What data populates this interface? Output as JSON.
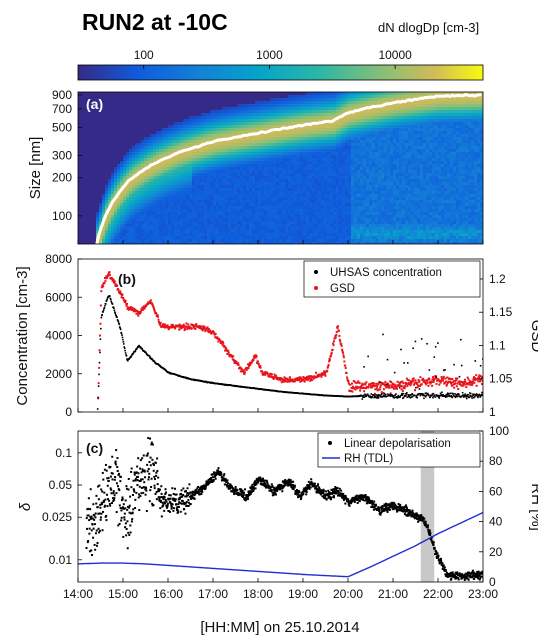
{
  "figure": {
    "title": "RUN2 at -10C",
    "colorbar_label": "dN dlogDp [cm-3]",
    "colorbar_ticks": [
      "100",
      "1000",
      "10000"
    ],
    "xlabel": "[HH:MM] on 25.10.2014",
    "x_ticks": [
      "14:00",
      "15:00",
      "16:00",
      "17:00",
      "18:00",
      "19:00",
      "20:00",
      "21:00",
      "22:00",
      "23:00"
    ]
  },
  "chart_data": [
    {
      "type": "heatmap",
      "panel_tag": "(a)",
      "ylabel": "Size [nm]",
      "y_scale": "log",
      "y_ticks": [
        "100",
        "200",
        "300",
        "500",
        "700",
        "900"
      ],
      "ylim": [
        60,
        950
      ],
      "xlim": [
        "14:00",
        "23:00"
      ],
      "colormap": "parula",
      "color_scale": "log",
      "color_range": [
        30,
        50000
      ],
      "median_line_color": "#ffffff",
      "median_line": {
        "x": [
          "14:25",
          "14:35",
          "14:50",
          "15:10",
          "15:40",
          "16:20",
          "17:00",
          "18:00",
          "19:00",
          "19:40",
          "20:00",
          "21:00",
          "22:00",
          "23:00"
        ],
        "y": [
          60,
          95,
          140,
          195,
          255,
          325,
          385,
          450,
          520,
          560,
          650,
          780,
          880,
          900
        ]
      }
    },
    {
      "type": "scatter",
      "panel_tag": "(b)",
      "ylabel": "Concentration [cm-3]",
      "y2label": "GSD",
      "ylim": [
        0,
        8000
      ],
      "y_ticks": [
        "0",
        "2000",
        "4000",
        "6000",
        "8000"
      ],
      "y2lim": [
        1.0,
        1.23
      ],
      "y2_ticks": [
        "1",
        "1.05",
        "1.1",
        "1.15",
        "1.2"
      ],
      "legend": "top-right",
      "series": [
        {
          "name": "UHSAS concentration",
          "color": "#000000",
          "x": [
            "14:00",
            "14:25",
            "14:30",
            "14:40",
            "14:55",
            "15:05",
            "15:20",
            "15:40",
            "16:00",
            "16:30",
            "17:00",
            "17:30",
            "18:00",
            "18:30",
            "19:00",
            "19:30",
            "20:00",
            "20:30",
            "21:00",
            "21:30",
            "22:00",
            "22:30",
            "23:00"
          ],
          "y": [
            0,
            0,
            5000,
            6200,
            4500,
            2700,
            3500,
            2700,
            2100,
            1750,
            1550,
            1400,
            1250,
            1100,
            1000,
            900,
            850,
            900,
            1800,
            1500,
            1400,
            1600,
            1200
          ]
        },
        {
          "name": "GSD",
          "color": "#e8141b",
          "x": [
            "14:25",
            "14:30",
            "14:40",
            "14:55",
            "15:05",
            "15:20",
            "15:35",
            "15:50",
            "16:10",
            "16:40",
            "17:00",
            "17:20",
            "17:40",
            "17:55",
            "18:05",
            "18:30",
            "19:00",
            "19:30",
            "19:45",
            "20:00",
            "20:30",
            "21:00",
            "21:30",
            "22:00",
            "22:30",
            "23:00"
          ],
          "y": [
            1.0,
            1.19,
            1.21,
            1.18,
            1.16,
            1.15,
            1.17,
            1.13,
            1.13,
            1.13,
            1.12,
            1.09,
            1.06,
            1.085,
            1.06,
            1.05,
            1.05,
            1.06,
            1.13,
            1.04,
            1.04,
            1.04,
            1.045,
            1.05,
            1.045,
            1.05
          ]
        }
      ]
    },
    {
      "type": "scatter",
      "panel_tag": "(c)",
      "ylabel": "δ",
      "y2label": "RH [%]",
      "y_scale": "log",
      "ylim": [
        0.0062,
        0.16
      ],
      "y_ticks": [
        "0.01",
        "0.025",
        "0.05",
        "0.1"
      ],
      "y2lim": [
        0,
        100
      ],
      "y2_ticks": [
        "0",
        "20",
        "40",
        "60",
        "80",
        "100"
      ],
      "legend": "top-right",
      "shaded_interval": {
        "x": [
          "21:37",
          "21:55"
        ],
        "color": "#c8c8c8"
      },
      "series": [
        {
          "name": "Linear depolarisation",
          "color": "#000000",
          "x": [
            "14:10",
            "14:30",
            "14:50",
            "15:00",
            "15:20",
            "15:35",
            "15:50",
            "16:10",
            "16:30",
            "16:50",
            "17:05",
            "17:25",
            "17:45",
            "18:00",
            "18:20",
            "18:40",
            "18:55",
            "19:10",
            "19:30",
            "19:45",
            "20:00",
            "20:20",
            "20:40",
            "21:00",
            "21:20",
            "21:40",
            "21:55",
            "22:10",
            "22:30",
            "23:00"
          ],
          "y": [
            0.02,
            0.03,
            0.06,
            0.025,
            0.055,
            0.07,
            0.036,
            0.034,
            0.04,
            0.05,
            0.068,
            0.045,
            0.04,
            0.058,
            0.044,
            0.055,
            0.04,
            0.052,
            0.04,
            0.045,
            0.035,
            0.04,
            0.03,
            0.033,
            0.028,
            0.024,
            0.012,
            0.0075,
            0.0072,
            0.0075
          ]
        },
        {
          "name": "RH (TDL)",
          "color": "#1f2fd4",
          "x": [
            "14:00",
            "14:30",
            "15:00",
            "15:30",
            "16:00",
            "17:00",
            "18:00",
            "19:00",
            "20:00",
            "20:30",
            "21:00",
            "21:30",
            "22:00",
            "22:30",
            "23:00"
          ],
          "y": [
            12,
            12.5,
            12.5,
            12,
            11,
            9,
            7,
            5,
            3.5,
            10,
            17,
            24,
            32,
            39,
            46
          ]
        }
      ]
    }
  ]
}
